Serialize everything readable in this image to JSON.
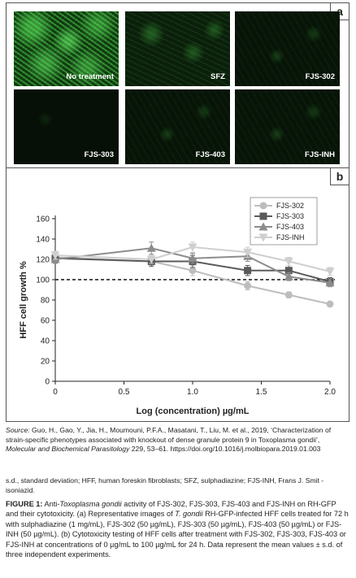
{
  "figure": {
    "panel_a": {
      "label": "a",
      "images": [
        {
          "label": "No treatment",
          "fluorescence": "dense"
        },
        {
          "label": "SFZ",
          "fluorescence": "mid"
        },
        {
          "label": "FJS-302",
          "fluorescence": "low"
        },
        {
          "label": "FJS-303",
          "fluorescence": "dark"
        },
        {
          "label": "FJS-403",
          "fluorescence": "low"
        },
        {
          "label": "FJS-INH",
          "fluorescence": "low"
        }
      ]
    },
    "panel_b": {
      "label": "b",
      "chart_data": {
        "type": "line",
        "xlabel": "Log (concentration) µg/mL",
        "ylabel": "HFF cell growth %",
        "xlim": [
          0,
          2.0
        ],
        "ylim": [
          0,
          160
        ],
        "x_ticks": [
          "0",
          "0.5",
          "1.0",
          "1.5",
          "2.0"
        ],
        "y_ticks": [
          "0",
          "20",
          "40",
          "60",
          "80",
          "100",
          "120",
          "140",
          "160"
        ],
        "reference_line": 100,
        "legend_position": "top-right",
        "x": [
          0,
          0.7,
          1.0,
          1.4,
          1.7,
          2.0
        ],
        "series": [
          {
            "name": "FJS-302",
            "marker": "circle",
            "color": "#bdbdbd",
            "values": [
              122,
              118,
              109,
              94,
              85,
              76
            ],
            "errors": [
              4,
              4,
              5,
              4,
              3,
              2
            ]
          },
          {
            "name": "FJS-303",
            "marker": "square",
            "color": "#5a5a5a",
            "values": [
              121,
              118,
              118,
              109,
              109,
              98
            ],
            "errors": [
              4,
              5,
              6,
              5,
              5,
              4
            ]
          },
          {
            "name": "FJS-403",
            "marker": "triangle-up",
            "color": "#8c8c8c",
            "values": [
              120,
              131,
              121,
              123,
              103,
              97
            ],
            "errors": [
              4,
              6,
              5,
              5,
              4,
              4
            ]
          },
          {
            "name": "FJS-INH",
            "marker": "triangle-down",
            "color": "#cfcfcf",
            "values": [
              124,
              120,
              132,
              127,
              118,
              108
            ],
            "errors": [
              4,
              4,
              5,
              5,
              4,
              4
            ]
          }
        ]
      }
    }
  },
  "source": {
    "lead": "Source:",
    "text_1": " Guo, H., Gao, Y., Jia, H., Moumouni, P.F.A., Masatani, T., Liu, M. et al., 2019, ‘Characterization of strain-specific phenotypes associated with knockout of dense granule protein 9 in Toxoplasma gondii’, ",
    "journal": "Molecular and Biochemical Parasitology",
    "text_2": " 229, 53–61. https://doi.org/10.1016/j.molbiopara.2019.01.003"
  },
  "abbreviations": "s.d., standard deviation; HFF, human foreskin fibroblasts; SFZ, sulphadiazine; FJS-INH, Frans J. Smit -isoniazid.",
  "caption": {
    "label": "FIGURE 1:",
    "p1": " Anti-",
    "i1": "Toxoplasma gondii",
    "p2": " activity of FJS-302, FJS-303, FJS-403 and FJS-INH on RH-GFP and their cytotoxicity. (a) Representative images of ",
    "i2": "T. gondii",
    "p3": " RH-GFP-infected HFF cells treated for 72 h with sulphadiazine (1 mg/mL), FJS-302 (50 µg/mL), FJS-303 (50 µg/mL), FJS-403 (50 µg/mL) or FJS-INH (50 µg/mL). (b) Cytotoxicity testing of HFF cells after treatment with FJS-302, FJS-303, FJS-403 or FJS-INH at concentrations of 0 µg/mL to 100 µg/mL for 24 h. Data represent the mean values ± s.d. of three independent experiments."
  }
}
